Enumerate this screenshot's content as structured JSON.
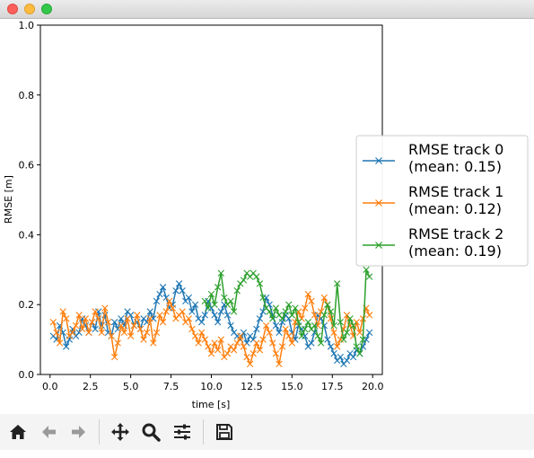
{
  "window": {
    "buttons": [
      "close",
      "minimize",
      "maximize"
    ]
  },
  "toolbar": {
    "icons": [
      "home-icon",
      "back-arrow-icon",
      "forward-arrow-icon",
      "pan-icon",
      "zoom-icon",
      "configure-subplots-icon",
      "save-icon"
    ]
  },
  "colors": {
    "track0": "#1f77b4",
    "track1": "#ff7f0e",
    "track2": "#2ca02c"
  },
  "chart_data": {
    "type": "line",
    "title": "",
    "xlabel": "time [s]",
    "ylabel": "RMSE [m]",
    "xlim": [
      -0.6,
      20.6
    ],
    "ylim": [
      0.0,
      1.0
    ],
    "xticks": [
      0.0,
      2.5,
      5.0,
      7.5,
      10.0,
      12.5,
      15.0,
      17.5,
      20.0
    ],
    "xtick_labels": [
      "0.0",
      "2.5",
      "5.0",
      "7.5",
      "10.0",
      "12.5",
      "15.0",
      "17.5",
      "20.0"
    ],
    "yticks": [
      0.0,
      0.2,
      0.4,
      0.6,
      0.8,
      1.0
    ],
    "ytick_labels": [
      "0.0",
      "0.2",
      "0.4",
      "0.6",
      "0.8",
      "1.0"
    ],
    "grid": false,
    "legend": {
      "placement": "right, outside axes"
    },
    "marker": "x",
    "series": [
      {
        "name": "RMSE track 0",
        "label_lines": [
          "RMSE track 0",
          "(mean: 0.15)"
        ],
        "color": "#1f77b4",
        "x": [
          0.2,
          0.4,
          0.6,
          0.8,
          1.0,
          1.2,
          1.4,
          1.6,
          1.8,
          2.0,
          2.2,
          2.4,
          2.6,
          2.8,
          3.0,
          3.2,
          3.4,
          3.6,
          3.8,
          4.0,
          4.2,
          4.4,
          4.6,
          4.8,
          5.0,
          5.2,
          5.4,
          5.6,
          5.8,
          6.0,
          6.2,
          6.4,
          6.6,
          6.8,
          7.0,
          7.2,
          7.4,
          7.6,
          7.8,
          8.0,
          8.2,
          8.4,
          8.6,
          8.8,
          9.0,
          9.2,
          9.4,
          9.6,
          9.8,
          10.0,
          10.2,
          10.4,
          10.6,
          10.8,
          11.0,
          11.2,
          11.4,
          11.6,
          11.8,
          12.0,
          12.2,
          12.4,
          12.6,
          12.8,
          13.0,
          13.2,
          13.4,
          13.6,
          13.8,
          14.0,
          14.2,
          14.4,
          14.6,
          14.8,
          15.0,
          15.2,
          15.4,
          15.6,
          15.8,
          16.0,
          16.2,
          16.4,
          16.6,
          16.8,
          17.0,
          17.2,
          17.4,
          17.6,
          17.8,
          18.0,
          18.2,
          18.4,
          18.6,
          18.8,
          19.0,
          19.2,
          19.4,
          19.6,
          19.8
        ],
        "y": [
          0.11,
          0.1,
          0.14,
          0.12,
          0.08,
          0.1,
          0.13,
          0.11,
          0.12,
          0.16,
          0.14,
          0.12,
          0.15,
          0.13,
          0.18,
          0.14,
          0.17,
          0.12,
          0.11,
          0.15,
          0.13,
          0.16,
          0.14,
          0.18,
          0.17,
          0.14,
          0.15,
          0.13,
          0.16,
          0.15,
          0.18,
          0.16,
          0.21,
          0.23,
          0.25,
          0.22,
          0.19,
          0.2,
          0.24,
          0.26,
          0.24,
          0.21,
          0.22,
          0.18,
          0.2,
          0.16,
          0.15,
          0.17,
          0.21,
          0.19,
          0.17,
          0.15,
          0.18,
          0.2,
          0.17,
          0.14,
          0.12,
          0.11,
          0.1,
          0.12,
          0.09,
          0.11,
          0.1,
          0.13,
          0.16,
          0.18,
          0.22,
          0.2,
          0.17,
          0.14,
          0.12,
          0.15,
          0.17,
          0.16,
          0.12,
          0.1,
          0.14,
          0.13,
          0.11,
          0.08,
          0.09,
          0.12,
          0.17,
          0.16,
          0.14,
          0.1,
          0.08,
          0.06,
          0.04,
          0.05,
          0.03,
          0.04,
          0.06,
          0.05,
          0.07,
          0.06,
          0.08,
          0.1,
          0.12
        ],
        "mean": 0.15
      },
      {
        "name": "RMSE track 1",
        "label_lines": [
          "RMSE track 1",
          "(mean: 0.12)"
        ],
        "color": "#ff7f0e",
        "x": [
          0.2,
          0.4,
          0.6,
          0.8,
          1.0,
          1.2,
          1.4,
          1.6,
          1.8,
          2.0,
          2.2,
          2.4,
          2.6,
          2.8,
          3.0,
          3.2,
          3.4,
          3.6,
          3.8,
          4.0,
          4.2,
          4.4,
          4.6,
          4.8,
          5.0,
          5.2,
          5.4,
          5.6,
          5.8,
          6.0,
          6.2,
          6.4,
          6.6,
          6.8,
          7.0,
          7.2,
          7.4,
          7.6,
          7.8,
          8.0,
          8.2,
          8.4,
          8.6,
          8.8,
          9.0,
          9.2,
          9.4,
          9.6,
          9.8,
          10.0,
          10.2,
          10.4,
          10.6,
          10.8,
          11.0,
          11.2,
          11.4,
          11.6,
          11.8,
          12.0,
          12.2,
          12.4,
          12.6,
          12.8,
          13.0,
          13.2,
          13.4,
          13.6,
          13.8,
          14.0,
          14.2,
          14.4,
          14.6,
          14.8,
          15.0,
          15.2,
          15.4,
          15.6,
          15.8,
          16.0,
          16.2,
          16.4,
          16.6,
          16.8,
          17.0,
          17.2,
          17.4,
          17.6,
          17.8,
          18.0,
          18.2,
          18.4,
          18.6,
          18.8,
          19.0,
          19.2,
          19.4,
          19.6,
          19.8
        ],
        "y": [
          0.15,
          0.12,
          0.09,
          0.18,
          0.16,
          0.11,
          0.12,
          0.14,
          0.17,
          0.13,
          0.16,
          0.12,
          0.15,
          0.18,
          0.16,
          0.12,
          0.19,
          0.15,
          0.11,
          0.05,
          0.09,
          0.14,
          0.12,
          0.16,
          0.11,
          0.14,
          0.17,
          0.13,
          0.1,
          0.12,
          0.16,
          0.09,
          0.12,
          0.17,
          0.15,
          0.18,
          0.21,
          0.19,
          0.16,
          0.17,
          0.18,
          0.15,
          0.16,
          0.13,
          0.11,
          0.09,
          0.12,
          0.1,
          0.08,
          0.06,
          0.09,
          0.07,
          0.1,
          0.05,
          0.06,
          0.08,
          0.07,
          0.09,
          0.11,
          0.08,
          0.05,
          0.03,
          0.06,
          0.09,
          0.07,
          0.1,
          0.14,
          0.12,
          0.09,
          0.06,
          0.03,
          0.08,
          0.13,
          0.11,
          0.09,
          0.15,
          0.18,
          0.16,
          0.19,
          0.23,
          0.21,
          0.17,
          0.14,
          0.18,
          0.22,
          0.2,
          0.16,
          0.12,
          0.08,
          0.1,
          0.13,
          0.17,
          0.14,
          0.11,
          0.15,
          0.12,
          0.16,
          0.19,
          0.17
        ],
        "mean": 0.12
      },
      {
        "name": "RMSE track 2",
        "label_lines": [
          "RMSE track 2",
          "(mean: 0.19)"
        ],
        "color": "#2ca02c",
        "x": [
          9.6,
          9.8,
          10.0,
          10.2,
          10.4,
          10.6,
          10.8,
          11.0,
          11.2,
          11.4,
          11.6,
          11.8,
          12.0,
          12.2,
          12.4,
          12.6,
          12.8,
          13.0,
          13.2,
          13.4,
          13.6,
          13.8,
          14.0,
          14.2,
          14.4,
          14.6,
          14.8,
          15.0,
          15.2,
          15.4,
          15.6,
          15.8,
          16.0,
          16.2,
          16.4,
          16.6,
          16.8,
          17.0,
          17.2,
          17.4,
          17.6,
          17.8,
          18.0,
          18.2,
          18.4,
          18.6,
          18.8,
          19.0,
          19.2,
          19.4,
          19.6,
          19.8
        ],
        "y": [
          0.21,
          0.19,
          0.23,
          0.2,
          0.25,
          0.29,
          0.22,
          0.2,
          0.21,
          0.18,
          0.24,
          0.26,
          0.27,
          0.29,
          0.28,
          0.29,
          0.28,
          0.26,
          0.22,
          0.19,
          0.18,
          0.16,
          0.19,
          0.17,
          0.16,
          0.18,
          0.2,
          0.17,
          0.19,
          0.15,
          0.11,
          0.13,
          0.15,
          0.13,
          0.14,
          0.11,
          0.09,
          0.17,
          0.2,
          0.18,
          0.14,
          0.26,
          0.15,
          0.1,
          0.12,
          0.16,
          0.14,
          0.08,
          0.06,
          0.1,
          0.3,
          0.28
        ],
        "mean": 0.19
      }
    ]
  }
}
